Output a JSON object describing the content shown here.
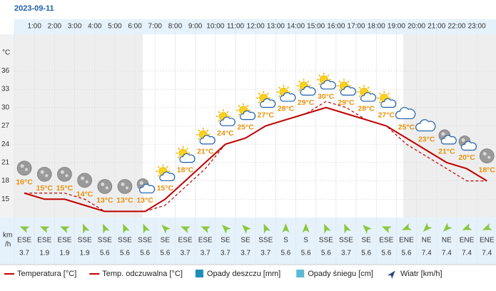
{
  "chart_data": {
    "type": "line",
    "title": "2023-09-11",
    "hour_labels": [
      "1:00",
      "2:00",
      "3:00",
      "4:00",
      "5:00",
      "6:00",
      "7:00",
      "8:00",
      "9:00",
      "10:00",
      "11:00",
      "12:00",
      "13:00",
      "14:00",
      "15:00",
      "16:00",
      "17:00",
      "18:00",
      "19:00",
      "20:00",
      "21:00",
      "22:00",
      "23:00"
    ],
    "y_unit": "°C",
    "ylim": [
      12,
      42
    ],
    "yticks": [
      15,
      18,
      21,
      24,
      27,
      30,
      33,
      36
    ],
    "grid": true,
    "series": [
      {
        "name": "Temperatura [°C]",
        "color": "#c00000",
        "dashed": false,
        "values": [
          16,
          15,
          15,
          14,
          13,
          13,
          13,
          15,
          18,
          21,
          24,
          25,
          27,
          28,
          29,
          30,
          29,
          28,
          27,
          25,
          23,
          21,
          20,
          18
        ],
        "value_labels": [
          "16°C",
          "15°C",
          "15°C",
          "14°C",
          "13°C",
          "13°C",
          "13°C",
          "15°C",
          "18°C",
          "21°C",
          "24°C",
          "25°C",
          "27°C",
          "28°C",
          "29°C",
          "30°C",
          "29°C",
          "28°C",
          "27°C",
          "25°C",
          "23°C",
          "21°C",
          "20°C",
          "18°C"
        ]
      },
      {
        "name": "Temp. odczuwalna [°C]",
        "color": "#c00000",
        "dashed": true,
        "values": [
          16,
          16,
          16,
          15,
          13,
          13,
          13,
          14,
          17,
          20,
          24,
          25,
          27,
          28,
          29,
          31,
          30,
          28,
          27,
          24,
          22,
          20,
          18,
          18
        ]
      }
    ],
    "icons": [
      "moon",
      "moon",
      "moon",
      "moon",
      "moon",
      "moon",
      "moon-cloud",
      "sun-cloud",
      "sun-cloud",
      "sun-cloud",
      "sun-cloud",
      "sun-cloud",
      "sun-cloud",
      "sun-cloud",
      "sun-cloud",
      "sun-cloud",
      "sun-cloud",
      "sun-cloud",
      "sun-cloud",
      "cloud",
      "cloud",
      "moon-cloud",
      "moon-cloud",
      "moon"
    ],
    "wind": {
      "unit_lines": [
        "km",
        "/h"
      ],
      "directions": [
        "ESE",
        "ESE",
        "ESE",
        "SSE",
        "SSE",
        "SSE",
        "SSE",
        "SE",
        "ESE",
        "ESE",
        "SE",
        "SE",
        "SSE",
        "S",
        "S",
        "SSE",
        "SSE",
        "SE",
        "ESE",
        "ENE",
        "NE",
        "NE",
        "ENE",
        "ENE"
      ],
      "speeds": [
        3.7,
        1.9,
        1.9,
        1.9,
        5.6,
        5.6,
        5.6,
        5.6,
        3.7,
        3.7,
        3.7,
        3.7,
        3.7,
        5.6,
        5.6,
        5.6,
        3.7,
        5.6,
        5.6,
        5.6,
        7.4,
        7.4,
        7.4,
        7.4
      ],
      "color": "#8dc63f"
    },
    "legend_extra": [
      {
        "name": "Opady deszczu [mm]",
        "color": "#1a8fb8",
        "shape": "square"
      },
      {
        "name": "Opady śniegu [cm]",
        "color": "#5bbad5",
        "shape": "square"
      },
      {
        "name": "Wiatr [km/h]",
        "color": "#2b4a7a",
        "shape": "arrow"
      }
    ]
  }
}
